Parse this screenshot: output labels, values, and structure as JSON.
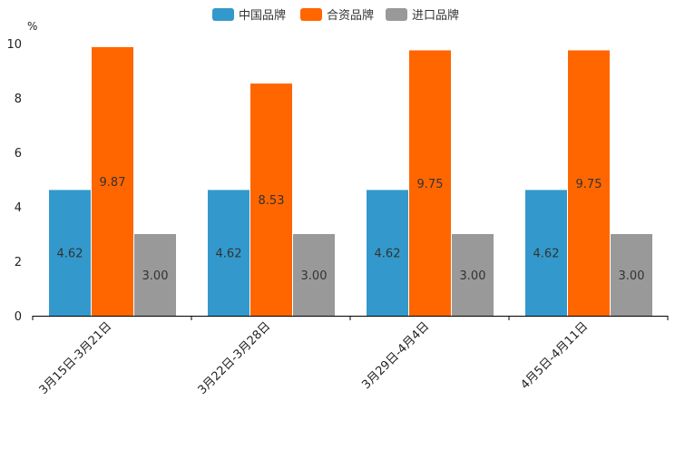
{
  "chart_data": {
    "type": "bar",
    "unit": "%",
    "categories": [
      "3月15日-3月21日",
      "3月22日-3月28日",
      "3月29日-4月4日",
      "4月5日-4月11日"
    ],
    "series": [
      {
        "name": "中国品牌",
        "color": "#3399CC",
        "values": [
          4.62,
          4.62,
          4.62,
          4.62
        ],
        "labels": [
          "4.62",
          "4.62",
          "4.62",
          "4.62"
        ]
      },
      {
        "name": "合资品牌",
        "color": "#FF6600",
        "values": [
          9.87,
          8.53,
          9.75,
          9.75
        ],
        "labels": [
          "9.87",
          "8.53",
          "9.75",
          "9.75"
        ]
      },
      {
        "name": "进口品牌",
        "color": "#999999",
        "values": [
          3.0,
          3.0,
          3.0,
          3.0
        ],
        "labels": [
          "3.00",
          "3.00",
          "3.00",
          "3.00"
        ]
      }
    ],
    "yticks": [
      "0",
      "2",
      "4",
      "6",
      "8",
      "10"
    ],
    "ylim": [
      0,
      10
    ],
    "legend_position": "top-center",
    "grid": false
  }
}
